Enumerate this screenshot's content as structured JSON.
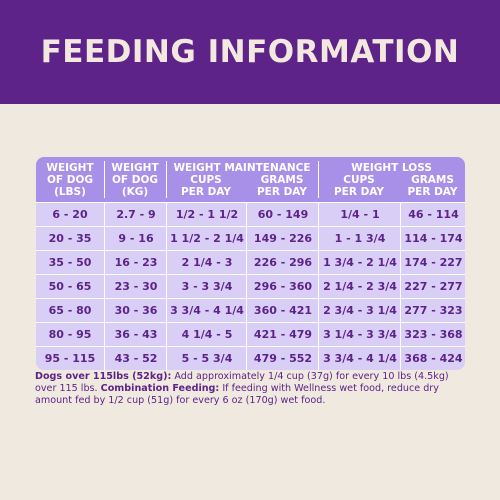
{
  "banner": {
    "title": "FEEDING INFORMATION"
  },
  "headers": {
    "weight_lbs": [
      "WEIGHT",
      "OF DOG",
      "(LBS)"
    ],
    "weight_kg": [
      "WEIGHT",
      "OF DOG",
      "(KG)"
    ],
    "maintenance_group": "WEIGHT MAINTENANCE",
    "loss_group": "WEIGHT LOSS",
    "cups": [
      "CUPS",
      "PER DAY"
    ],
    "grams": [
      "GRAMS",
      "PER DAY"
    ]
  },
  "rows": [
    [
      "6 - 20",
      "2.7 - 9",
      "1/2 - 1 1/2",
      "60 - 149",
      "1/4 - 1",
      "46 - 114"
    ],
    [
      "20 - 35",
      "9 - 16",
      "1 1/2 - 2 1/4",
      "149 - 226",
      "1 - 1 3/4",
      "114 - 174"
    ],
    [
      "35 - 50",
      "16 - 23",
      "2 1/4 - 3",
      "226 - 296",
      "1 3/4 - 2 1/4",
      "174 - 227"
    ],
    [
      "50 - 65",
      "23 - 30",
      "3 - 3 3/4",
      "296 - 360",
      "2 1/4 - 2 3/4",
      "227 - 277"
    ],
    [
      "65 - 80",
      "30 - 36",
      "3 3/4 - 4 1/4",
      "360 - 421",
      "2 3/4 - 3 1/4",
      "277 - 323"
    ],
    [
      "80 - 95",
      "36 - 43",
      "4 1/4 - 5",
      "421 - 479",
      "3 1/4 - 3 3/4",
      "323 - 368"
    ],
    [
      "95 - 115",
      "43 - 52",
      "5 - 5 3/4",
      "479 - 552",
      "3 3/4 - 4 1/4",
      "368 - 424"
    ]
  ],
  "note": {
    "over_label": "Dogs over 115lbs (52kg):",
    "over_text": " Add approximately 1/4 cup (37g) for every 10 lbs (4.5kg) over 115 lbs. ",
    "combo_label": "Combination Feeding:",
    "combo_text": " If feeding with Wellness wet food, reduce dry amount fed by 1/2 cup (51g) for every 6 oz (170g) wet food."
  },
  "colors": {
    "brand_purple": "#5d2388",
    "header_lavender": "#a88fe8",
    "row_lavender": "#d9cef6",
    "background": "#efe9df"
  }
}
